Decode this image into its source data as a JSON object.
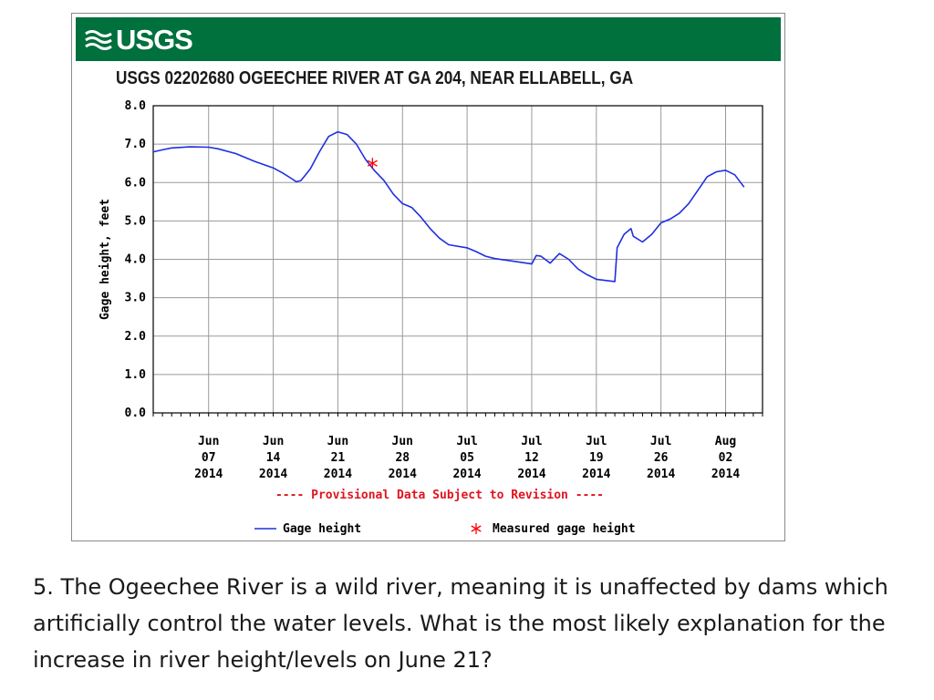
{
  "logo_text": "USGS",
  "question_text": "5. The Ogeechee River is a wild river, meaning it is unaffected by dams which artificially control the water levels. What is the most likely explanation for the increase in river height/levels on June 21?",
  "colors": {
    "banner": "#00703c",
    "series": "#1f2fe0",
    "measured": "#ff0000",
    "notice": "#e0141e"
  },
  "chart_data": {
    "type": "line",
    "title": "USGS 02202680 OGEECHEE RIVER AT GA 204, NEAR ELLABELL, GA",
    "ylabel": "Gage height, feet",
    "xlabel": "",
    "ylim": [
      0,
      8
    ],
    "yticks": [
      "0.0",
      "1.0",
      "2.0",
      "3.0",
      "4.0",
      "5.0",
      "6.0",
      "7.0",
      "8.0"
    ],
    "x_unit": "date (2014)",
    "xlim": [
      "2014-06-01",
      "2014-08-06"
    ],
    "xticks": [
      {
        "date": "2014-06-07",
        "month": "Jun",
        "day": "07",
        "year": "2014"
      },
      {
        "date": "2014-06-14",
        "month": "Jun",
        "day": "14",
        "year": "2014"
      },
      {
        "date": "2014-06-21",
        "month": "Jun",
        "day": "21",
        "year": "2014"
      },
      {
        "date": "2014-06-28",
        "month": "Jun",
        "day": "28",
        "year": "2014"
      },
      {
        "date": "2014-07-05",
        "month": "Jul",
        "day": "05",
        "year": "2014"
      },
      {
        "date": "2014-07-12",
        "month": "Jul",
        "day": "12",
        "year": "2014"
      },
      {
        "date": "2014-07-19",
        "month": "Jul",
        "day": "19",
        "year": "2014"
      },
      {
        "date": "2014-07-26",
        "month": "Jul",
        "day": "26",
        "year": "2014"
      },
      {
        "date": "2014-08-02",
        "month": "Aug",
        "day": "02",
        "year": "2014"
      }
    ],
    "grid": true,
    "notice": "---- Provisional Data Subject to Revision ----",
    "series": [
      {
        "name": "Gage height",
        "points": [
          [
            "2014-06-01",
            6.8
          ],
          [
            "2014-06-02",
            6.85
          ],
          [
            "2014-06-03",
            6.9
          ],
          [
            "2014-06-05",
            6.93
          ],
          [
            "2014-06-07",
            6.92
          ],
          [
            "2014-06-08",
            6.88
          ],
          [
            "2014-06-10",
            6.75
          ],
          [
            "2014-06-12",
            6.55
          ],
          [
            "2014-06-14",
            6.38
          ],
          [
            "2014-06-15",
            6.25
          ],
          [
            "2014-06-16",
            6.1
          ],
          [
            "2014-06-16T12",
            6.02
          ],
          [
            "2014-06-17",
            6.05
          ],
          [
            "2014-06-18",
            6.35
          ],
          [
            "2014-06-19",
            6.8
          ],
          [
            "2014-06-20",
            7.2
          ],
          [
            "2014-06-21",
            7.32
          ],
          [
            "2014-06-22",
            7.25
          ],
          [
            "2014-06-23",
            7.0
          ],
          [
            "2014-06-24",
            6.6
          ],
          [
            "2014-06-25",
            6.3
          ],
          [
            "2014-06-26",
            6.05
          ],
          [
            "2014-06-27",
            5.7
          ],
          [
            "2014-06-28",
            5.45
          ],
          [
            "2014-06-29",
            5.35
          ],
          [
            "2014-06-30",
            5.1
          ],
          [
            "2014-07-01",
            4.8
          ],
          [
            "2014-07-02",
            4.55
          ],
          [
            "2014-07-03",
            4.38
          ],
          [
            "2014-07-05",
            4.3
          ],
          [
            "2014-07-06",
            4.2
          ],
          [
            "2014-07-07",
            4.08
          ],
          [
            "2014-07-08",
            4.02
          ],
          [
            "2014-07-10",
            3.95
          ],
          [
            "2014-07-12",
            3.88
          ],
          [
            "2014-07-12T12",
            4.1
          ],
          [
            "2014-07-13",
            4.08
          ],
          [
            "2014-07-14",
            3.9
          ],
          [
            "2014-07-15",
            4.15
          ],
          [
            "2014-07-16",
            4.0
          ],
          [
            "2014-07-17",
            3.75
          ],
          [
            "2014-07-18",
            3.6
          ],
          [
            "2014-07-19",
            3.48
          ],
          [
            "2014-07-20",
            3.45
          ],
          [
            "2014-07-21",
            3.42
          ],
          [
            "2014-07-21T06",
            4.3
          ],
          [
            "2014-07-22",
            4.65
          ],
          [
            "2014-07-22T18",
            4.8
          ],
          [
            "2014-07-23",
            4.6
          ],
          [
            "2014-07-24",
            4.45
          ],
          [
            "2014-07-25",
            4.65
          ],
          [
            "2014-07-26",
            4.95
          ],
          [
            "2014-07-27",
            5.05
          ],
          [
            "2014-07-28",
            5.2
          ],
          [
            "2014-07-29",
            5.45
          ],
          [
            "2014-07-30",
            5.8
          ],
          [
            "2014-07-31",
            6.15
          ],
          [
            "2014-08-01",
            6.28
          ],
          [
            "2014-08-02",
            6.32
          ],
          [
            "2014-08-03",
            6.2
          ],
          [
            "2014-08-04",
            5.88
          ]
        ]
      },
      {
        "name": "Measured gage height",
        "points": [
          [
            "2014-06-24T18",
            6.5
          ]
        ]
      }
    ],
    "legend": [
      {
        "label": "Gage height",
        "marker": "line"
      },
      {
        "label": "Measured gage height",
        "marker": "asterisk"
      }
    ]
  }
}
